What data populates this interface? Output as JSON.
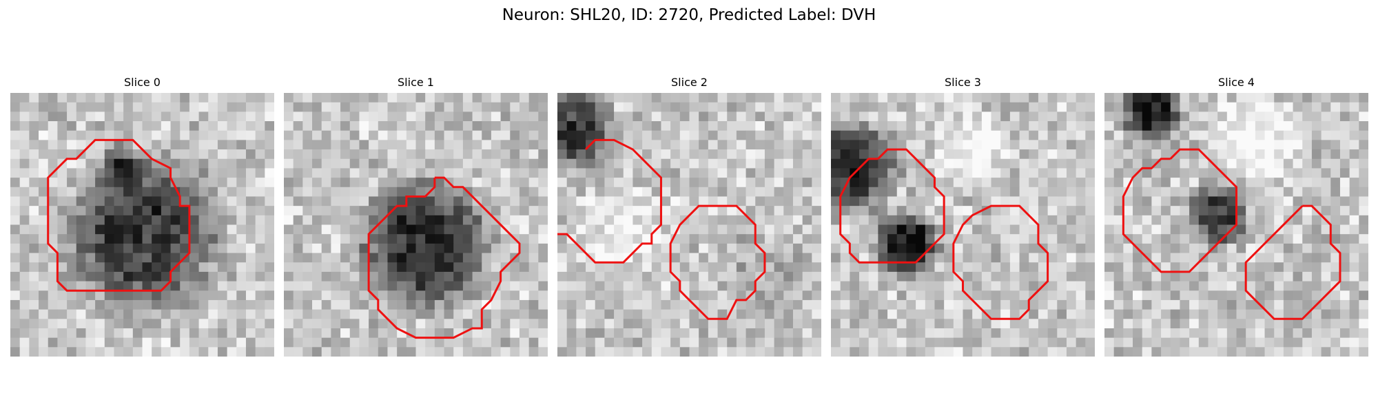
{
  "figure": {
    "title": "Neuron: SHL20, ID: 2720, Predicted Label: DVH"
  },
  "colors": {
    "contour": "#ee1111",
    "background": "#ffffff"
  },
  "panels": [
    {
      "title": "Slice 0",
      "seed": 11,
      "blobs": [
        {
          "cx": 14.0,
          "cy": 15.0,
          "r": 10.0,
          "depth": 0.55
        },
        {
          "cx": 12.0,
          "cy": 8.0,
          "r": 3.0,
          "depth": 0.35
        }
      ],
      "contours": [
        [
          [
            11,
            5
          ],
          [
            13,
            5
          ],
          [
            15,
            7
          ],
          [
            17,
            8
          ],
          [
            17,
            9
          ],
          [
            18,
            11
          ],
          [
            18,
            12
          ],
          [
            19,
            12
          ],
          [
            19,
            16
          ],
          [
            19,
            17
          ],
          [
            18,
            18
          ],
          [
            17,
            19
          ],
          [
            17,
            20
          ],
          [
            16,
            21
          ],
          [
            10,
            21
          ],
          [
            6,
            21
          ],
          [
            5,
            20
          ],
          [
            5,
            18
          ],
          [
            5,
            17
          ],
          [
            4,
            16
          ],
          [
            4,
            13
          ],
          [
            4,
            9
          ],
          [
            5,
            8
          ],
          [
            6,
            7
          ],
          [
            7,
            7
          ],
          [
            8,
            6
          ],
          [
            9,
            5
          ],
          [
            11,
            5
          ]
        ]
      ]
    },
    {
      "title": "Slice 1",
      "seed": 23,
      "blobs": [
        {
          "cx": 15.0,
          "cy": 16.0,
          "r": 8.5,
          "depth": 0.6
        }
      ],
      "contours": [
        [
          [
            16,
            9
          ],
          [
            17,
            9
          ],
          [
            18,
            10
          ],
          [
            19,
            10
          ],
          [
            20,
            11
          ],
          [
            21,
            12
          ],
          [
            22,
            13
          ],
          [
            23,
            14
          ],
          [
            24,
            15
          ],
          [
            25,
            16
          ],
          [
            25,
            17
          ],
          [
            24,
            18
          ],
          [
            23,
            19
          ],
          [
            23,
            20
          ],
          [
            22,
            22
          ],
          [
            21,
            23
          ],
          [
            21,
            25
          ],
          [
            20,
            25
          ],
          [
            18,
            26
          ],
          [
            14,
            26
          ],
          [
            12,
            25
          ],
          [
            11,
            24
          ],
          [
            10,
            23
          ],
          [
            10,
            22
          ],
          [
            9,
            21
          ],
          [
            9,
            16
          ],
          [
            9,
            15
          ],
          [
            10,
            14
          ],
          [
            11,
            13
          ],
          [
            12,
            12
          ],
          [
            13,
            12
          ],
          [
            13,
            11
          ],
          [
            15,
            11
          ],
          [
            16,
            10
          ],
          [
            16,
            9
          ]
        ]
      ]
    },
    {
      "title": "Slice 2",
      "seed": 37,
      "blobs": [
        {
          "cx": 2.0,
          "cy": 4.0,
          "r": 5.0,
          "depth": 0.55
        },
        {
          "cx": 7.0,
          "cy": 15.0,
          "r": 8.0,
          "depth": -0.1
        },
        {
          "cx": 22.0,
          "cy": 19.0,
          "r": 6.0,
          "depth": 0.1
        }
      ],
      "contours": [
        [
          [
            3,
            6
          ],
          [
            4,
            5
          ],
          [
            6,
            5
          ],
          [
            8,
            6
          ],
          [
            9,
            7
          ],
          [
            10,
            8
          ],
          [
            11,
            9
          ],
          [
            11,
            13
          ],
          [
            11,
            14
          ],
          [
            10,
            15
          ],
          [
            10,
            16
          ],
          [
            9,
            16
          ],
          [
            8,
            17
          ],
          [
            7,
            18
          ],
          [
            4,
            18
          ],
          [
            3,
            17
          ],
          [
            2,
            16
          ],
          [
            1,
            15
          ],
          [
            0,
            15
          ]
        ],
        [
          [
            17,
            12
          ],
          [
            19,
            12
          ],
          [
            20,
            13
          ],
          [
            21,
            14
          ],
          [
            21,
            16
          ],
          [
            22,
            17
          ],
          [
            22,
            19
          ],
          [
            21,
            20
          ],
          [
            21,
            21
          ],
          [
            20,
            22
          ],
          [
            19,
            22
          ],
          [
            18,
            24
          ],
          [
            16,
            24
          ],
          [
            15,
            23
          ],
          [
            14,
            22
          ],
          [
            13,
            21
          ],
          [
            13,
            20
          ],
          [
            12,
            19
          ],
          [
            12,
            16
          ],
          [
            13,
            14
          ],
          [
            14,
            13
          ],
          [
            15,
            12
          ],
          [
            17,
            12
          ]
        ]
      ]
    },
    {
      "title": "Slice 3",
      "seed": 51,
      "blobs": [
        {
          "cx": 2.0,
          "cy": 8.0,
          "r": 6.0,
          "depth": 0.6
        },
        {
          "cx": 8.0,
          "cy": 16.0,
          "r": 4.0,
          "depth": 0.75
        },
        {
          "cx": 15.0,
          "cy": 6.0,
          "r": 5.0,
          "depth": -0.2
        }
      ],
      "contours": [
        [
          [
            5,
            7
          ],
          [
            6,
            6
          ],
          [
            8,
            6
          ],
          [
            9,
            7
          ],
          [
            10,
            8
          ],
          [
            11,
            9
          ],
          [
            11,
            10
          ],
          [
            12,
            11
          ],
          [
            12,
            14
          ],
          [
            12,
            15
          ],
          [
            11,
            16
          ],
          [
            10,
            17
          ],
          [
            9,
            18
          ],
          [
            5,
            18
          ],
          [
            3,
            18
          ],
          [
            2,
            17
          ],
          [
            2,
            16
          ],
          [
            1,
            15
          ],
          [
            1,
            11
          ],
          [
            2,
            9
          ],
          [
            3,
            8
          ],
          [
            4,
            7
          ],
          [
            5,
            7
          ]
        ],
        [
          [
            18,
            12
          ],
          [
            20,
            12
          ],
          [
            21,
            13
          ],
          [
            22,
            14
          ],
          [
            22,
            16
          ],
          [
            23,
            17
          ],
          [
            23,
            20
          ],
          [
            22,
            21
          ],
          [
            21,
            22
          ],
          [
            21,
            23
          ],
          [
            20,
            24
          ],
          [
            17,
            24
          ],
          [
            16,
            23
          ],
          [
            15,
            22
          ],
          [
            14,
            21
          ],
          [
            14,
            20
          ],
          [
            13,
            19
          ],
          [
            13,
            16
          ],
          [
            14,
            14
          ],
          [
            15,
            13
          ],
          [
            17,
            12
          ],
          [
            18,
            12
          ]
        ]
      ]
    },
    {
      "title": "Slice 4",
      "seed": 67,
      "blobs": [
        {
          "cx": 5.0,
          "cy": 2.0,
          "r": 4.0,
          "depth": 0.65
        },
        {
          "cx": 12.0,
          "cy": 13.0,
          "r": 4.0,
          "depth": 0.6
        },
        {
          "cx": 16.0,
          "cy": 5.0,
          "r": 6.0,
          "depth": -0.2
        }
      ],
      "contours": [
        [
          [
            7,
            7
          ],
          [
            8,
            6
          ],
          [
            10,
            6
          ],
          [
            11,
            7
          ],
          [
            12,
            8
          ],
          [
            13,
            9
          ],
          [
            14,
            10
          ],
          [
            14,
            14
          ],
          [
            13,
            15
          ],
          [
            12,
            16
          ],
          [
            11,
            17
          ],
          [
            10,
            18
          ],
          [
            9,
            19
          ],
          [
            7,
            19
          ],
          [
            6,
            19
          ],
          [
            5,
            18
          ],
          [
            4,
            17
          ],
          [
            3,
            16
          ],
          [
            2,
            15
          ],
          [
            2,
            12
          ],
          [
            2,
            11
          ],
          [
            3,
            9
          ],
          [
            4,
            8
          ],
          [
            5,
            8
          ],
          [
            6,
            7
          ],
          [
            7,
            7
          ]
        ],
        [
          [
            21,
            12
          ],
          [
            22,
            12
          ],
          [
            23,
            13
          ],
          [
            24,
            14
          ],
          [
            24,
            16
          ],
          [
            25,
            17
          ],
          [
            25,
            20
          ],
          [
            24,
            21
          ],
          [
            23,
            22
          ],
          [
            22,
            23
          ],
          [
            21,
            24
          ],
          [
            18,
            24
          ],
          [
            17,
            23
          ],
          [
            16,
            22
          ],
          [
            15,
            21
          ],
          [
            15,
            18
          ],
          [
            16,
            17
          ],
          [
            17,
            16
          ],
          [
            18,
            15
          ],
          [
            19,
            14
          ],
          [
            20,
            13
          ],
          [
            21,
            12
          ]
        ]
      ]
    }
  ]
}
